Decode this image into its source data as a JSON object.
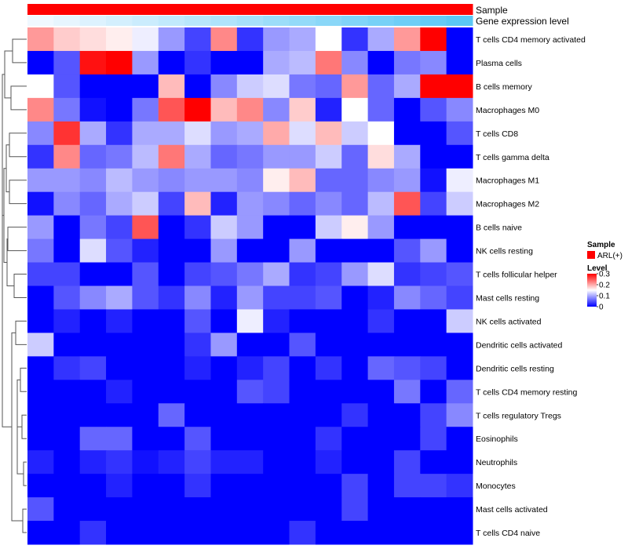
{
  "chart_data": {
    "type": "heatmap",
    "title": "",
    "annotations": [
      {
        "name": "Sample",
        "value_label": "ARL(+)",
        "color": "#FF0000"
      },
      {
        "name": "Gene expression level",
        "gradient": [
          "#F0F8FF",
          "#5BC8F5"
        ]
      }
    ],
    "rows": [
      "T cells CD4 memory activated",
      "Plasma cells",
      "B cells memory",
      "Macrophages M0",
      "T cells CD8",
      "T cells gamma delta",
      "Macrophages M1",
      "Macrophages M2",
      "B cells naive",
      "NK cells resting",
      "T cells follicular helper",
      "Mast cells resting",
      "NK cells activated",
      "Dendritic cells activated",
      "Dendritic cells resting",
      "T cells CD4 memory resting",
      "T cells regulatory  Tregs",
      "Eosinophils",
      "Neutrophils",
      "Monocytes",
      "Mast cells activated",
      "T cells CD4 naive"
    ],
    "n_columns": 17,
    "values": [
      [
        0.21,
        0.18,
        0.17,
        0.16,
        0.14,
        0.09,
        0.04,
        0.22,
        0.03,
        0.09,
        0.1,
        0.15,
        0.03,
        0.1,
        0.21,
        0.3,
        0.0
      ],
      [
        0.0,
        0.05,
        0.29,
        0.3,
        0.09,
        0.0,
        0.03,
        0.0,
        0.0,
        0.1,
        0.11,
        0.23,
        0.08,
        0.0,
        0.07,
        0.08,
        0.0
      ],
      [
        0.15,
        0.05,
        0.0,
        0.0,
        0.0,
        0.19,
        0.0,
        0.08,
        0.12,
        0.13,
        0.07,
        0.06,
        0.21,
        0.06,
        0.1,
        0.3,
        0.3
      ],
      [
        0.22,
        0.07,
        0.01,
        0.0,
        0.07,
        0.25,
        0.3,
        0.19,
        0.22,
        0.08,
        0.18,
        0.02,
        0.15,
        0.06,
        0.0,
        0.05,
        0.08
      ],
      [
        0.08,
        0.27,
        0.1,
        0.03,
        0.1,
        0.1,
        0.13,
        0.09,
        0.1,
        0.2,
        0.13,
        0.19,
        0.12,
        0.15,
        0.0,
        0.0,
        0.05
      ],
      [
        0.03,
        0.22,
        0.06,
        0.07,
        0.11,
        0.23,
        0.1,
        0.06,
        0.07,
        0.09,
        0.09,
        0.12,
        0.06,
        0.17,
        0.1,
        0.0,
        0.0
      ],
      [
        0.09,
        0.09,
        0.08,
        0.11,
        0.09,
        0.08,
        0.09,
        0.09,
        0.08,
        0.16,
        0.19,
        0.06,
        0.06,
        0.08,
        0.09,
        0.01,
        0.14
      ],
      [
        0.01,
        0.08,
        0.06,
        0.1,
        0.12,
        0.04,
        0.19,
        0.02,
        0.09,
        0.08,
        0.06,
        0.08,
        0.06,
        0.11,
        0.25,
        0.04,
        0.12
      ],
      [
        0.09,
        0.0,
        0.07,
        0.04,
        0.25,
        0.0,
        0.03,
        0.12,
        0.09,
        0.0,
        0.0,
        0.12,
        0.16,
        0.09,
        0.0,
        0.0,
        0.0
      ],
      [
        0.07,
        0.0,
        0.13,
        0.05,
        0.02,
        0.0,
        0.0,
        0.09,
        0.0,
        0.0,
        0.09,
        0.0,
        0.0,
        0.0,
        0.05,
        0.09,
        0.0
      ],
      [
        0.04,
        0.04,
        0.0,
        0.0,
        0.05,
        0.0,
        0.04,
        0.05,
        0.07,
        0.1,
        0.03,
        0.04,
        0.09,
        0.13,
        0.03,
        0.04,
        0.05
      ],
      [
        0.0,
        0.05,
        0.08,
        0.1,
        0.05,
        0.03,
        0.08,
        0.02,
        0.09,
        0.04,
        0.04,
        0.05,
        0.0,
        0.02,
        0.08,
        0.06,
        0.04
      ],
      [
        0.0,
        0.02,
        0.0,
        0.02,
        0.0,
        0.0,
        0.05,
        0.0,
        0.14,
        0.02,
        0.0,
        0.0,
        0.0,
        0.03,
        0.0,
        0.0,
        0.12
      ],
      [
        0.12,
        0.0,
        0.0,
        0.0,
        0.0,
        0.0,
        0.03,
        0.09,
        0.0,
        0.0,
        0.05,
        0.0,
        0.0,
        0.0,
        0.0,
        0.0,
        0.0
      ],
      [
        0.0,
        0.03,
        0.04,
        0.0,
        0.0,
        0.0,
        0.02,
        0.0,
        0.02,
        0.04,
        0.0,
        0.03,
        0.0,
        0.06,
        0.05,
        0.04,
        0.0
      ],
      [
        0.0,
        0.0,
        0.0,
        0.02,
        0.0,
        0.0,
        0.0,
        0.0,
        0.05,
        0.04,
        0.0,
        0.0,
        0.0,
        0.0,
        0.07,
        0.0,
        0.06
      ],
      [
        0.0,
        0.0,
        0.0,
        0.0,
        0.0,
        0.06,
        0.0,
        0.0,
        0.0,
        0.0,
        0.0,
        0.0,
        0.03,
        0.0,
        0.0,
        0.04,
        0.08
      ],
      [
        0.0,
        0.0,
        0.06,
        0.06,
        0.0,
        0.0,
        0.05,
        0.0,
        0.0,
        0.0,
        0.0,
        0.03,
        0.0,
        0.0,
        0.0,
        0.04,
        0.0
      ],
      [
        0.02,
        0.0,
        0.02,
        0.03,
        0.01,
        0.02,
        0.04,
        0.02,
        0.02,
        0.0,
        0.0,
        0.02,
        0.0,
        0.0,
        0.04,
        0.0,
        0.0
      ],
      [
        0.0,
        0.0,
        0.0,
        0.02,
        0.0,
        0.0,
        0.03,
        0.0,
        0.0,
        0.0,
        0.0,
        0.0,
        0.04,
        0.0,
        0.04,
        0.04,
        0.03
      ],
      [
        0.05,
        0.0,
        0.0,
        0.0,
        0.0,
        0.0,
        0.0,
        0.0,
        0.0,
        0.0,
        0.0,
        0.0,
        0.04,
        0.0,
        0.0,
        0.0,
        0.0
      ],
      [
        0.0,
        0.0,
        0.03,
        0.0,
        0.0,
        0.0,
        0.0,
        0.0,
        0.0,
        0.0,
        0.03,
        0.0,
        0.0,
        0.0,
        0.0,
        0.0,
        0.0
      ]
    ],
    "color_scale": {
      "colors": [
        "#0000FF",
        "#FFFFFF",
        "#FF0000"
      ],
      "domain": [
        0,
        0.15,
        0.3
      ]
    },
    "legends": {
      "sample": {
        "title": "Sample",
        "entries": [
          {
            "label": "ARL(+)",
            "color": "#FF0000"
          }
        ]
      },
      "level": {
        "title": "Level",
        "ticks": [
          "0.3",
          "0.2",
          "0.1",
          "0"
        ],
        "range": [
          0,
          0.3
        ]
      }
    },
    "legend_position": "right"
  }
}
